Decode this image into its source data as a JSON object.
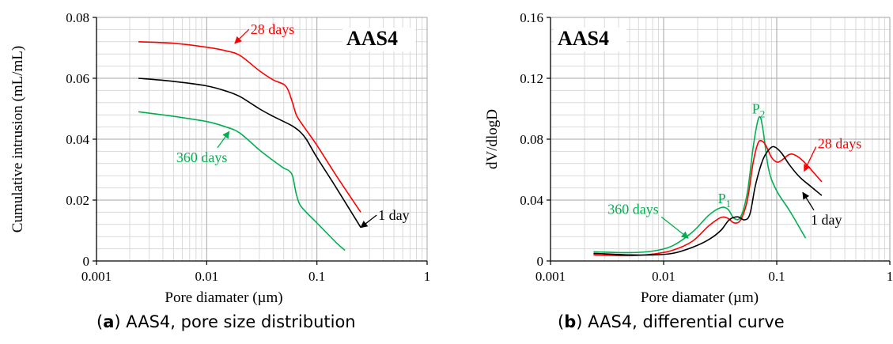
{
  "figure_captions": [
    {
      "letter": "a",
      "text": "AAS4, pore size distribution"
    },
    {
      "letter": "b",
      "text": "AAS4, differential curve"
    }
  ],
  "chart_data": [
    {
      "type": "line",
      "tag": "AAS4",
      "xlabel": "Pore diamater (µm)",
      "ylabel": "Cumulative intrusion (mL/mL)",
      "xscale": "log",
      "xlim": [
        0.001,
        1
      ],
      "ylim": [
        0,
        0.08
      ],
      "xtick_values": [
        0.001,
        0.01,
        0.1,
        1
      ],
      "xtick_labels": [
        "0.001",
        "0.01",
        "0.1",
        "1"
      ],
      "ytick_values": [
        0,
        0.02,
        0.04,
        0.06,
        0.08
      ],
      "ytick_labels": [
        "0",
        "0.02",
        "0.04",
        "0.06",
        "0.08"
      ],
      "grid": true,
      "series": [
        {
          "name": "28 days",
          "color": "#ff0000",
          "x": [
            0.0024,
            0.005,
            0.01,
            0.015,
            0.02,
            0.03,
            0.04,
            0.05,
            0.055,
            0.06,
            0.065,
            0.07,
            0.08,
            0.1,
            0.15,
            0.25
          ],
          "y": [
            0.072,
            0.0715,
            0.0702,
            0.069,
            0.0675,
            0.0625,
            0.0595,
            0.058,
            0.056,
            0.052,
            0.048,
            0.046,
            0.043,
            0.038,
            0.028,
            0.016
          ]
        },
        {
          "name": "1 day",
          "color": "#000000",
          "x": [
            0.0024,
            0.005,
            0.01,
            0.015,
            0.02,
            0.03,
            0.04,
            0.05,
            0.06,
            0.07,
            0.08,
            0.1,
            0.15,
            0.25
          ],
          "y": [
            0.06,
            0.059,
            0.0575,
            0.0558,
            0.054,
            0.05,
            0.0475,
            0.0458,
            0.0443,
            0.0425,
            0.04,
            0.034,
            0.024,
            0.011
          ]
        },
        {
          "name": "360 days",
          "color": "#00b050",
          "x": [
            0.0024,
            0.005,
            0.01,
            0.015,
            0.02,
            0.03,
            0.04,
            0.05,
            0.055,
            0.06,
            0.065,
            0.07,
            0.08,
            0.1,
            0.15,
            0.18
          ],
          "y": [
            0.049,
            0.0475,
            0.0458,
            0.044,
            0.042,
            0.0365,
            0.033,
            0.0305,
            0.0298,
            0.028,
            0.022,
            0.0185,
            0.016,
            0.0125,
            0.006,
            0.0035
          ]
        }
      ],
      "annotations": [
        {
          "text": "28 days",
          "color": "#ff0000",
          "x": 0.025,
          "y": 0.0745,
          "ax": 0.018,
          "ay": 0.0715
        },
        {
          "text": "360 days",
          "color": "#00b050",
          "x": 0.0053,
          "y": 0.0325,
          "ax": 0.016,
          "ay": 0.0425
        },
        {
          "text": "1 day",
          "color": "#000000",
          "x": 0.36,
          "y": 0.0135,
          "ax": 0.25,
          "ay": 0.011
        }
      ]
    },
    {
      "type": "line",
      "tag": "AAS4",
      "xlabel": "Pore diamater (µm)",
      "ylabel": "dV/dlogD",
      "xscale": "log",
      "xlim": [
        0.001,
        1
      ],
      "ylim": [
        0,
        0.16
      ],
      "xtick_values": [
        0.001,
        0.01,
        0.1,
        1
      ],
      "xtick_labels": [
        "0.001",
        "0.01",
        "0.1",
        "1"
      ],
      "ytick_values": [
        0,
        0.04,
        0.08,
        0.12,
        0.16
      ],
      "ytick_labels": [
        "0",
        "0.04",
        "0.08",
        "0.12",
        "0.16"
      ],
      "grid": true,
      "series": [
        {
          "name": "360 days",
          "color": "#00b050",
          "x": [
            0.0024,
            0.005,
            0.008,
            0.012,
            0.018,
            0.025,
            0.032,
            0.037,
            0.042,
            0.048,
            0.055,
            0.062,
            0.068,
            0.072,
            0.076,
            0.085,
            0.1,
            0.13,
            0.18
          ],
          "y": [
            0.006,
            0.0055,
            0.0065,
            0.01,
            0.019,
            0.03,
            0.035,
            0.034,
            0.028,
            0.029,
            0.045,
            0.075,
            0.092,
            0.094,
            0.085,
            0.06,
            0.046,
            0.033,
            0.015
          ]
        },
        {
          "name": "28 days",
          "color": "#ff0000",
          "x": [
            0.0024,
            0.005,
            0.008,
            0.012,
            0.018,
            0.025,
            0.032,
            0.037,
            0.042,
            0.048,
            0.055,
            0.062,
            0.068,
            0.073,
            0.08,
            0.09,
            0.1,
            0.11,
            0.13,
            0.15,
            0.18,
            0.25
          ],
          "y": [
            0.004,
            0.0035,
            0.0045,
            0.007,
            0.013,
            0.023,
            0.0285,
            0.028,
            0.025,
            0.027,
            0.04,
            0.065,
            0.077,
            0.079,
            0.076,
            0.068,
            0.065,
            0.066,
            0.07,
            0.069,
            0.064,
            0.052
          ]
        },
        {
          "name": "1 day",
          "color": "#000000",
          "x": [
            0.0024,
            0.005,
            0.008,
            0.012,
            0.018,
            0.025,
            0.032,
            0.038,
            0.045,
            0.052,
            0.058,
            0.065,
            0.075,
            0.085,
            0.095,
            0.11,
            0.13,
            0.16,
            0.2,
            0.25
          ],
          "y": [
            0.005,
            0.004,
            0.004,
            0.005,
            0.009,
            0.014,
            0.02,
            0.027,
            0.029,
            0.027,
            0.031,
            0.05,
            0.066,
            0.073,
            0.075,
            0.071,
            0.063,
            0.055,
            0.049,
            0.043
          ]
        }
      ],
      "annotations": [
        {
          "text": "360 days",
          "color": "#00b050",
          "x": 0.0032,
          "y": 0.031,
          "ax": 0.0165,
          "ay": 0.015
        },
        {
          "text": "28 days",
          "color": "#ff0000",
          "x": 0.23,
          "y": 0.074,
          "ax": 0.175,
          "ay": 0.059
        },
        {
          "text": "1 day",
          "color": "#000000",
          "x": 0.2,
          "y": 0.024,
          "ax": 0.17,
          "ay": 0.045
        }
      ],
      "peak_labels": [
        {
          "text": "P",
          "sub": "1",
          "color": "#00b050",
          "x": 0.0345,
          "y": 0.038
        },
        {
          "text": "P",
          "sub": "2",
          "color": "#00b050",
          "x": 0.069,
          "y": 0.097
        }
      ]
    }
  ]
}
